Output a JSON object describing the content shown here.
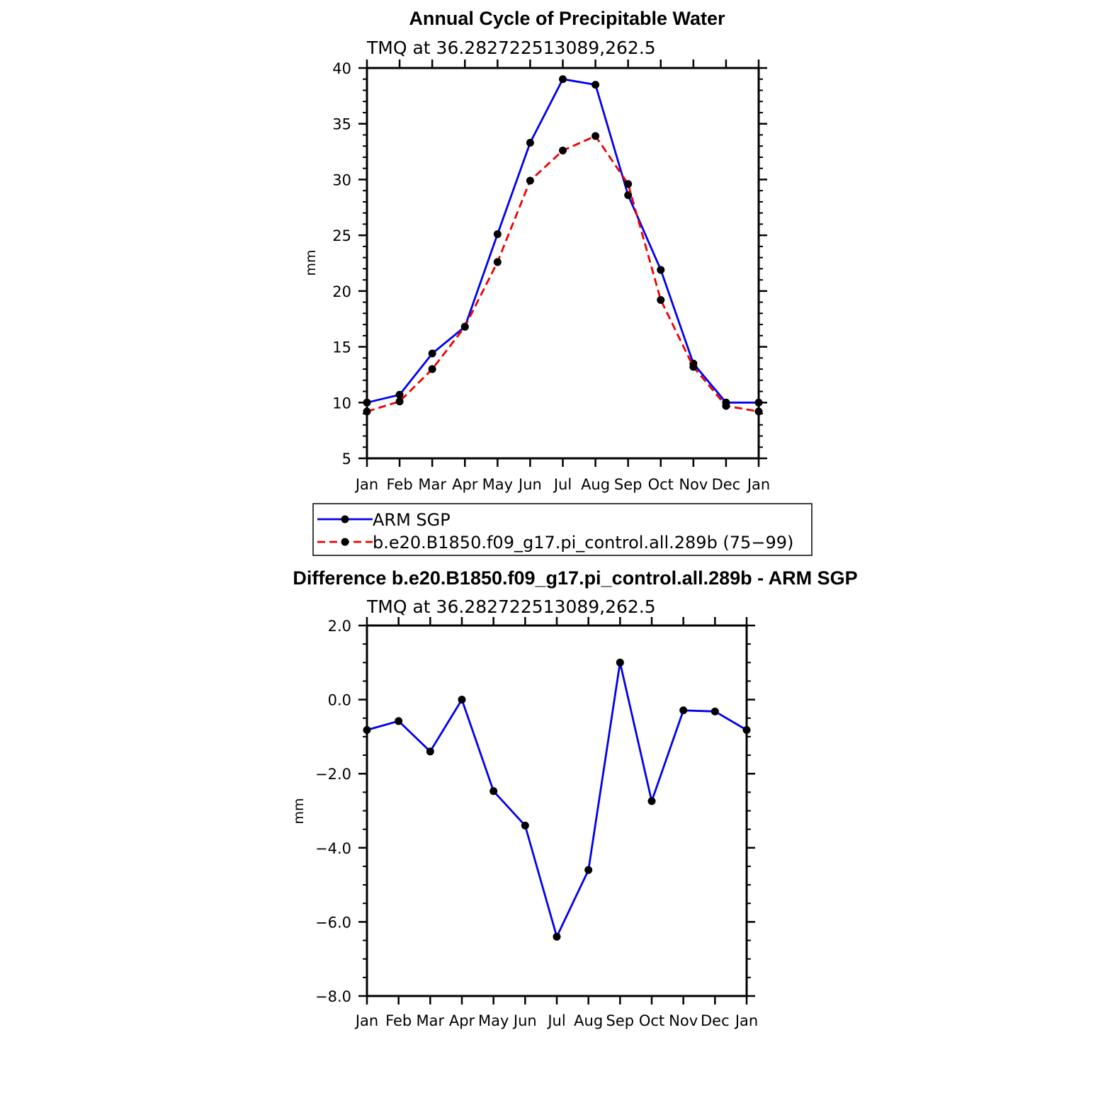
{
  "chart_data": [
    {
      "type": "line",
      "title": "Annual Cycle of Precipitable Water",
      "subtitle": "TMQ at 36.282722513089,262.5",
      "ylabel": "mm",
      "xlabel": "",
      "categories": [
        "Jan",
        "Feb",
        "Mar",
        "Apr",
        "May",
        "Jun",
        "Jul",
        "Aug",
        "Sep",
        "Oct",
        "Nov",
        "Dec",
        "Jan"
      ],
      "ylim": [
        5,
        40
      ],
      "yticks": [
        "5",
        "10",
        "15",
        "20",
        "25",
        "30",
        "35",
        "40"
      ],
      "ytick_values": [
        5,
        10,
        15,
        20,
        25,
        30,
        35,
        40
      ],
      "grid": false,
      "legend_position": "bottom",
      "series": [
        {
          "name": "ARM SGP",
          "color": "#0000ee",
          "dash": "solid",
          "values": [
            10.0,
            10.7,
            14.4,
            16.8,
            25.1,
            33.3,
            39.0,
            38.5,
            28.6,
            21.9,
            13.5,
            10.0,
            10.0
          ]
        },
        {
          "name": "b.e20.B1850.f09_g17.pi_control.all.289b (75−99)",
          "color": "#ee0000",
          "dash": "dashed",
          "values": [
            9.2,
            10.1,
            13.0,
            16.8,
            22.6,
            29.9,
            32.6,
            33.9,
            29.6,
            19.2,
            13.2,
            9.7,
            9.2
          ]
        }
      ]
    },
    {
      "type": "line",
      "title": "Difference b.e20.B1850.f09_g17.pi_control.all.289b - ARM SGP",
      "subtitle": "TMQ at 36.282722513089,262.5",
      "ylabel": "mm",
      "xlabel": "",
      "categories": [
        "Jan",
        "Feb",
        "Mar",
        "Apr",
        "May",
        "Jun",
        "Jul",
        "Aug",
        "Sep",
        "Oct",
        "Nov",
        "Dec",
        "Jan"
      ],
      "ylim": [
        -8.0,
        2.0
      ],
      "yticks": [
        "−8.0",
        "−6.0",
        "−4.0",
        "−2.0",
        "0.0",
        "2.0"
      ],
      "ytick_values": [
        -8,
        -6,
        -4,
        -2,
        0,
        2
      ],
      "grid": false,
      "series": [
        {
          "color": "#0000ee",
          "dash": "solid",
          "values": [
            -0.82,
            -0.58,
            -1.4,
            0.0,
            -2.47,
            -3.4,
            -6.4,
            -4.6,
            1.0,
            -2.74,
            -0.29,
            -0.32,
            -0.82
          ]
        }
      ]
    }
  ]
}
